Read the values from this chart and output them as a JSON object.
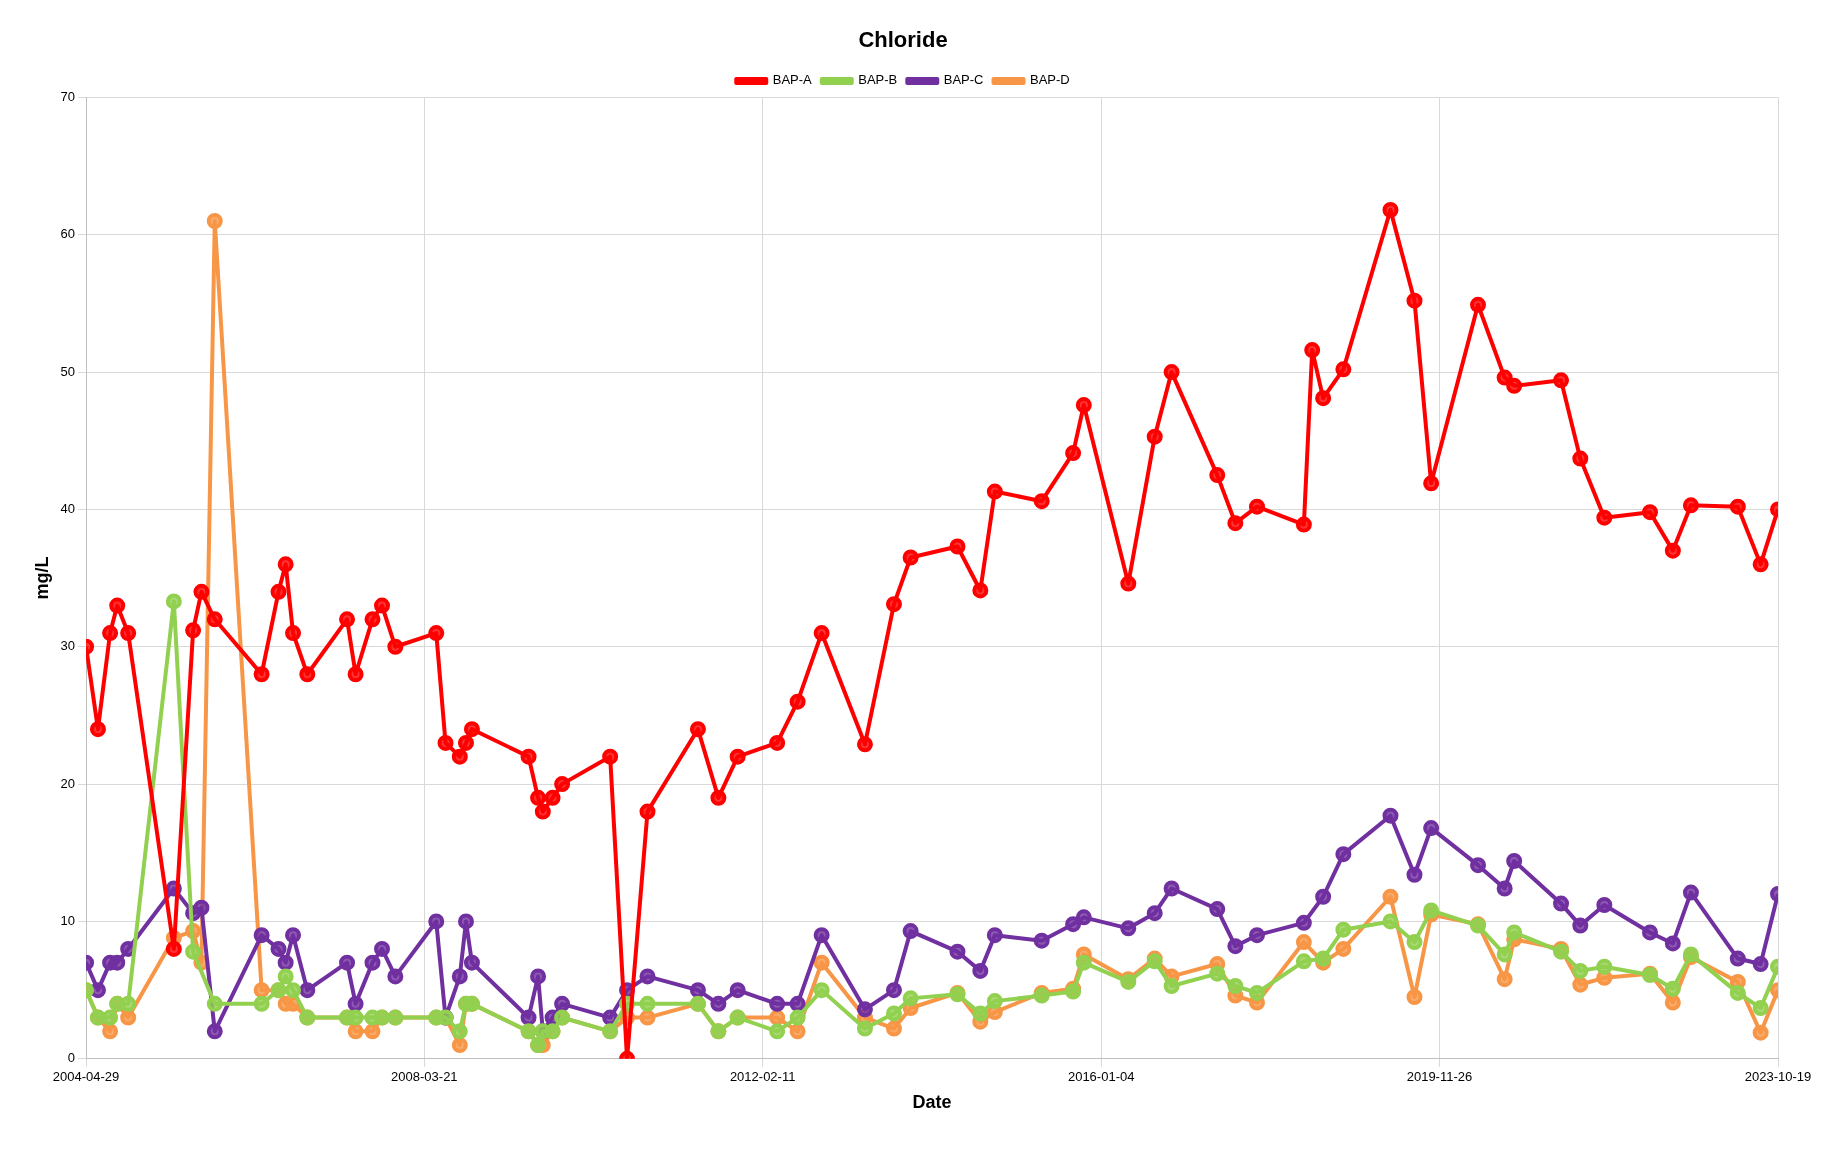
{
  "chart_data": {
    "type": "line",
    "title": "Chloride",
    "xlabel": "Date",
    "ylabel": "mg/L",
    "legend": "top",
    "grid": true,
    "marker": "circle",
    "line_style": "solid",
    "xlim": [
      "2004-04-29",
      "2023-10-19"
    ],
    "xticks": [
      "2004-04-29",
      "2008-03-21",
      "2012-02-11",
      "2016-01-04",
      "2019-11-26",
      "2023-10-19"
    ],
    "ylim": [
      0,
      70
    ],
    "yticks": [
      0,
      10,
      20,
      30,
      40,
      50,
      60,
      70
    ],
    "x": [
      "2004-04-29",
      "2004-06-18",
      "2004-08-08",
      "2004-09-07",
      "2004-10-23",
      "2005-05-03",
      "2005-07-23",
      "2005-08-27",
      "2005-10-22",
      "2006-05-07",
      "2006-07-17",
      "2006-08-16",
      "2006-09-16",
      "2006-11-15",
      "2007-05-01",
      "2007-06-06",
      "2007-08-16",
      "2007-09-25",
      "2007-11-20",
      "2008-05-10",
      "2008-06-18",
      "2008-08-17",
      "2008-09-12",
      "2008-10-07",
      "2009-06-02",
      "2009-07-12",
      "2009-08-01",
      "2009-09-11",
      "2009-10-21",
      "2010-05-11",
      "2010-07-21",
      "2010-10-15",
      "2011-05-15",
      "2011-08-09",
      "2011-10-29",
      "2012-04-12",
      "2012-07-07",
      "2012-10-16",
      "2013-04-16",
      "2013-08-16",
      "2013-10-25",
      "2014-05-10",
      "2014-08-14",
      "2014-10-14",
      "2015-04-29",
      "2015-09-08",
      "2015-10-23",
      "2016-04-27",
      "2016-08-16",
      "2016-10-26",
      "2017-05-06",
      "2017-07-21",
      "2017-10-20",
      "2018-05-05",
      "2018-06-09",
      "2018-07-25",
      "2018-10-18",
      "2019-05-04",
      "2019-08-13",
      "2019-10-22",
      "2020-05-06",
      "2020-08-26",
      "2020-10-05",
      "2021-04-20",
      "2021-07-10",
      "2021-10-19",
      "2022-04-29",
      "2022-08-03",
      "2022-10-18",
      "2023-05-03",
      "2023-08-07",
      "2023-10-19"
    ],
    "series": [
      {
        "name": "BAP-A",
        "color": "#ff0000",
        "values": [
          30,
          24,
          31,
          33,
          31,
          8,
          31.2,
          34,
          32,
          28,
          34,
          36,
          31,
          28,
          32,
          28,
          32,
          33,
          30,
          31,
          23,
          22,
          23,
          24,
          22,
          19,
          18,
          19,
          20,
          22,
          0,
          18,
          24,
          19,
          22,
          23,
          26,
          31,
          22.9,
          33.1,
          36.5,
          37.3,
          34.1,
          41.3,
          40.6,
          44.1,
          47.6,
          34.6,
          45.3,
          50,
          42.5,
          39,
          40.2,
          38.9,
          51.6,
          48.1,
          50.2,
          61.8,
          55.2,
          41.9,
          54.9,
          49.6,
          49,
          49.4,
          43.7,
          39.4,
          39.8,
          37,
          40.3,
          40.2,
          36,
          40
        ]
      },
      {
        "name": "BAP-B",
        "color": "#92d050",
        "x": [
          "2004-04-29",
          "2004-06-18",
          "2004-08-08",
          "2004-09-07",
          "2004-10-23",
          "2005-05-03",
          "2005-07-23",
          "2005-10-22",
          "2006-05-07",
          "2006-07-17",
          "2006-08-16",
          "2006-09-16",
          "2006-11-15",
          "2007-05-01",
          "2007-06-06",
          "2007-08-16",
          "2007-09-25",
          "2007-11-20",
          "2008-05-10",
          "2008-06-18",
          "2008-08-17",
          "2008-09-12",
          "2008-10-07",
          "2009-06-02",
          "2009-07-12",
          "2009-08-01",
          "2009-09-11",
          "2009-10-21",
          "2010-05-11",
          "2010-07-21",
          "2010-10-15",
          "2011-05-15",
          "2011-08-09",
          "2011-10-29",
          "2012-04-12",
          "2012-07-07",
          "2012-10-16",
          "2013-04-16",
          "2013-08-16",
          "2013-10-25",
          "2014-05-10",
          "2014-08-14",
          "2014-10-14",
          "2015-04-29",
          "2015-09-08",
          "2015-10-23",
          "2016-04-27",
          "2016-08-16",
          "2016-10-26",
          "2017-05-06",
          "2017-07-21",
          "2017-10-20",
          "2018-05-05",
          "2018-07-25",
          "2018-10-18",
          "2019-05-04",
          "2019-08-13",
          "2019-10-22",
          "2020-05-06",
          "2020-08-26",
          "2020-10-05",
          "2021-04-20",
          "2021-07-10",
          "2021-10-19",
          "2022-04-29",
          "2022-08-03",
          "2022-10-18",
          "2023-05-03",
          "2023-08-07",
          "2023-10-19"
        ],
        "values": [
          5,
          3,
          3,
          4,
          4,
          33.3,
          7.8,
          4,
          4,
          5,
          6,
          5,
          3,
          3,
          3,
          3,
          3,
          3,
          3,
          3,
          2,
          4,
          4,
          2,
          1,
          2,
          2,
          3,
          2,
          4,
          4,
          4,
          2,
          3,
          2,
          3,
          5,
          2.2,
          3.3,
          4.4,
          4.7,
          3.3,
          4.2,
          4.6,
          4.9,
          7,
          5.6,
          7.1,
          5.3,
          6.2,
          5.3,
          4.8,
          7.1,
          7.3,
          9.4,
          10,
          8.5,
          10.8,
          9.7,
          7.6,
          9.2,
          7.8,
          6.4,
          6.7,
          6.1,
          5.1,
          7.6,
          4.8,
          3.7,
          6.7
        ]
      },
      {
        "name": "BAP-C",
        "color": "#7030a0",
        "x": [
          "2004-04-29",
          "2004-06-18",
          "2004-08-08",
          "2004-09-07",
          "2004-10-23",
          "2005-05-03",
          "2005-07-23",
          "2005-08-27",
          "2005-10-22",
          "2006-05-07",
          "2006-07-17",
          "2006-08-16",
          "2006-09-16",
          "2006-11-15",
          "2007-05-01",
          "2007-06-06",
          "2007-08-16",
          "2007-09-25",
          "2007-11-20",
          "2008-05-10",
          "2008-06-18",
          "2008-08-17",
          "2008-09-12",
          "2008-10-07",
          "2009-06-02",
          "2009-07-12",
          "2009-08-01",
          "2009-09-11",
          "2009-10-21",
          "2010-05-11",
          "2010-07-21",
          "2010-10-15",
          "2011-05-15",
          "2011-08-09",
          "2011-10-29",
          "2012-04-12",
          "2012-07-07",
          "2012-10-16",
          "2013-04-16",
          "2013-08-16",
          "2013-10-25",
          "2014-05-10",
          "2014-08-14",
          "2014-10-14",
          "2015-04-29",
          "2015-09-08",
          "2015-10-23",
          "2016-04-27",
          "2016-08-16",
          "2016-10-26",
          "2017-05-06",
          "2017-07-21",
          "2017-10-20",
          "2018-05-05",
          "2018-07-25",
          "2018-10-18",
          "2019-05-04",
          "2019-08-13",
          "2019-10-22",
          "2020-05-06",
          "2020-08-26",
          "2020-10-05",
          "2021-04-20",
          "2021-07-10",
          "2021-10-19",
          "2022-04-29",
          "2022-08-03",
          "2022-10-18",
          "2023-05-03",
          "2023-08-07",
          "2023-10-19"
        ],
        "values": [
          7,
          5,
          7,
          7,
          8,
          12.4,
          10.6,
          11,
          2,
          9,
          8,
          7,
          9,
          5,
          7,
          4,
          7,
          8,
          6,
          10,
          3,
          6,
          10,
          7,
          3,
          6,
          2,
          3,
          4,
          3,
          5,
          6,
          5,
          4,
          5,
          4,
          4,
          9,
          3.6,
          5,
          9.3,
          7.8,
          6.4,
          9,
          8.6,
          9.8,
          10.3,
          9.5,
          10.6,
          12.4,
          10.9,
          8.2,
          9,
          9.9,
          11.8,
          14.9,
          17.7,
          13.4,
          16.8,
          14.1,
          12.4,
          14.4,
          11.3,
          9.7,
          11.2,
          9.2,
          8.4,
          12.1,
          7.3,
          6.9,
          12
        ]
      },
      {
        "name": "BAP-D",
        "color": "#f79646",
        "x": [
          "2004-04-29",
          "2004-06-18",
          "2004-08-08",
          "2004-09-07",
          "2004-10-23",
          "2005-05-03",
          "2005-07-23",
          "2005-08-27",
          "2005-10-22",
          "2006-05-07",
          "2006-07-17",
          "2006-08-16",
          "2006-09-16",
          "2006-11-15",
          "2007-05-01",
          "2007-06-06",
          "2007-08-16",
          "2007-09-25",
          "2007-11-20",
          "2008-05-10",
          "2008-06-18",
          "2008-08-17",
          "2008-09-12",
          "2008-10-07",
          "2009-06-02",
          "2009-07-12",
          "2009-08-01",
          "2009-09-11",
          "2009-10-21",
          "2010-05-11",
          "2010-07-21",
          "2010-10-15",
          "2011-05-15",
          "2011-08-09",
          "2011-10-29",
          "2012-04-12",
          "2012-07-07",
          "2012-10-16",
          "2013-04-16",
          "2013-08-16",
          "2013-10-25",
          "2014-05-10",
          "2014-08-14",
          "2014-10-14",
          "2015-04-29",
          "2015-09-08",
          "2015-10-23",
          "2016-04-27",
          "2016-08-16",
          "2016-10-26",
          "2017-05-06",
          "2017-07-21",
          "2017-10-20",
          "2018-05-05",
          "2018-07-25",
          "2018-10-18",
          "2019-05-04",
          "2019-08-13",
          "2019-10-22",
          "2020-05-06",
          "2020-08-26",
          "2020-10-05",
          "2021-04-20",
          "2021-07-10",
          "2021-10-19",
          "2022-04-29",
          "2022-08-03",
          "2022-10-18",
          "2023-05-03",
          "2023-08-07",
          "2023-10-19"
        ],
        "values": [
          5,
          3,
          2,
          4,
          3,
          8.8,
          9.3,
          7,
          61,
          5,
          5,
          4,
          4,
          3,
          3,
          2,
          2,
          3,
          3,
          3,
          3,
          1,
          4,
          4,
          2,
          1,
          1,
          2,
          3,
          2,
          3,
          3,
          4,
          2,
          3,
          3,
          2,
          7,
          3,
          2.2,
          3.7,
          4.8,
          2.7,
          3.4,
          4.8,
          5.1,
          7.6,
          5.8,
          7.3,
          6,
          6.9,
          4.6,
          4.1,
          8.5,
          7,
          8,
          11.8,
          4.5,
          10.5,
          9.8,
          5.8,
          8.7,
          8,
          5.4,
          5.9,
          6.2,
          4.1,
          7.4,
          5.6,
          1.9,
          5
        ]
      }
    ]
  }
}
